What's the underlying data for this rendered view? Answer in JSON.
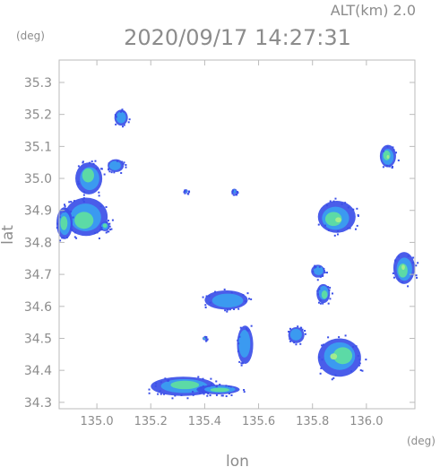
{
  "header": {
    "altitude_label": "ALT(km) 2.0",
    "timestamp": "2020/09/17 14:27:31"
  },
  "chart_data": {
    "type": "heatmap",
    "title": "2020/09/17 14:27:31",
    "xlabel": "lon",
    "ylabel": "lat",
    "x_unit": "(deg)",
    "y_unit": "(deg)",
    "xlim": [
      134.86,
      136.18
    ],
    "ylim": [
      34.28,
      35.37
    ],
    "x_ticks": [
      135.0,
      135.2,
      135.4,
      135.6,
      135.8,
      136.0
    ],
    "x_tick_labels": [
      "135.0",
      "135.2",
      "135.4",
      "135.6",
      "135.8",
      "136.0"
    ],
    "y_ticks": [
      34.3,
      34.4,
      34.5,
      34.6,
      34.7,
      34.8,
      34.9,
      35.0,
      35.1,
      35.2,
      35.3
    ],
    "y_tick_labels": [
      "34.3",
      "34.4",
      "34.5",
      "34.6",
      "34.7",
      "34.8",
      "34.9",
      "35.0",
      "35.1",
      "35.2",
      "35.3"
    ],
    "grid": false,
    "colors": {
      "low": "#3b4fe8",
      "mid": "#3aa0f0",
      "high": "#5fe0a0",
      "peak": "#a8f08a",
      "frame": "#bbbbbb"
    },
    "echoes": [
      {
        "lon": 134.96,
        "lat": 34.88,
        "rlon": 0.08,
        "rlat": 0.06,
        "level": 2
      },
      {
        "lon": 134.88,
        "lat": 34.86,
        "rlon": 0.03,
        "rlat": 0.05,
        "level": 2
      },
      {
        "lon": 134.97,
        "lat": 35.0,
        "rlon": 0.05,
        "rlat": 0.05,
        "level": 2
      },
      {
        "lon": 135.07,
        "lat": 35.04,
        "rlon": 0.03,
        "rlat": 0.02,
        "level": 1
      },
      {
        "lon": 135.03,
        "lat": 34.85,
        "rlon": 0.018,
        "rlat": 0.015,
        "level": 2
      },
      {
        "lon": 135.09,
        "lat": 35.19,
        "rlon": 0.025,
        "rlat": 0.025,
        "level": 1
      },
      {
        "lon": 135.32,
        "lat": 34.35,
        "rlon": 0.12,
        "rlat": 0.03,
        "level": 2
      },
      {
        "lon": 135.45,
        "lat": 34.34,
        "rlon": 0.08,
        "rlat": 0.015,
        "level": 2
      },
      {
        "lon": 135.55,
        "lat": 34.48,
        "rlon": 0.03,
        "rlat": 0.06,
        "level": 1
      },
      {
        "lon": 135.74,
        "lat": 34.51,
        "rlon": 0.03,
        "rlat": 0.025,
        "level": 1
      },
      {
        "lon": 135.9,
        "lat": 34.44,
        "rlon": 0.08,
        "rlat": 0.06,
        "level": 3
      },
      {
        "lon": 135.84,
        "lat": 34.64,
        "rlon": 0.025,
        "rlat": 0.03,
        "level": 2
      },
      {
        "lon": 135.82,
        "lat": 34.71,
        "rlon": 0.025,
        "rlat": 0.02,
        "level": 1
      },
      {
        "lon": 135.89,
        "lat": 34.88,
        "rlon": 0.07,
        "rlat": 0.05,
        "level": 3
      },
      {
        "lon": 136.08,
        "lat": 35.07,
        "rlon": 0.03,
        "rlat": 0.035,
        "level": 3
      },
      {
        "lon": 136.14,
        "lat": 34.72,
        "rlon": 0.04,
        "rlat": 0.05,
        "level": 3
      },
      {
        "lon": 135.48,
        "lat": 34.62,
        "rlon": 0.08,
        "rlat": 0.03,
        "level": 1
      },
      {
        "lon": 135.51,
        "lat": 34.96,
        "rlon": 0.01,
        "rlat": 0.008,
        "level": 1
      },
      {
        "lon": 135.33,
        "lat": 34.96,
        "rlon": 0.008,
        "rlat": 0.006,
        "level": 1
      },
      {
        "lon": 135.4,
        "lat": 34.5,
        "rlon": 0.008,
        "rlat": 0.006,
        "level": 2
      }
    ]
  }
}
